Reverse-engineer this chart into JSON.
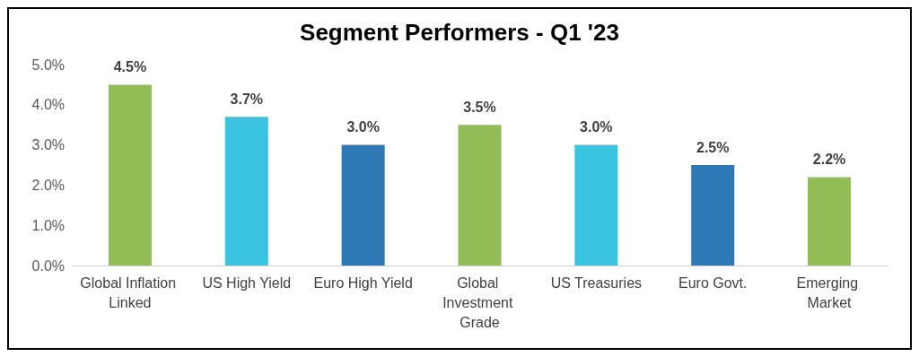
{
  "chart_data": {
    "type": "bar",
    "title": "Segment Performers - Q1 '23",
    "categories": [
      "Global Inflation Linked",
      "US High Yield",
      "Euro High Yield",
      "Global Investment Grade",
      "US Treasuries",
      "Euro Govt.",
      "Emerging Market"
    ],
    "values": [
      4.5,
      3.7,
      3.0,
      3.5,
      3.0,
      2.5,
      2.2
    ],
    "colors": [
      "#92bc56",
      "#3ac4e1",
      "#2e79b5",
      "#92bc56",
      "#3ac4e1",
      "#2e79b5",
      "#92bc56"
    ],
    "value_labels": [
      "4.5%",
      "3.7%",
      "3.0%",
      "3.5%",
      "3.0%",
      "2.5%",
      "2.2%"
    ],
    "ylim": [
      0,
      5
    ],
    "yticks": [
      {
        "value": 0,
        "label": "0.0%"
      },
      {
        "value": 1,
        "label": "1.0%"
      },
      {
        "value": 2,
        "label": "2.0%"
      },
      {
        "value": 3,
        "label": "3.0%"
      },
      {
        "value": 4,
        "label": "4.0%"
      },
      {
        "value": 5,
        "label": "5.0%"
      }
    ],
    "grid": false
  }
}
